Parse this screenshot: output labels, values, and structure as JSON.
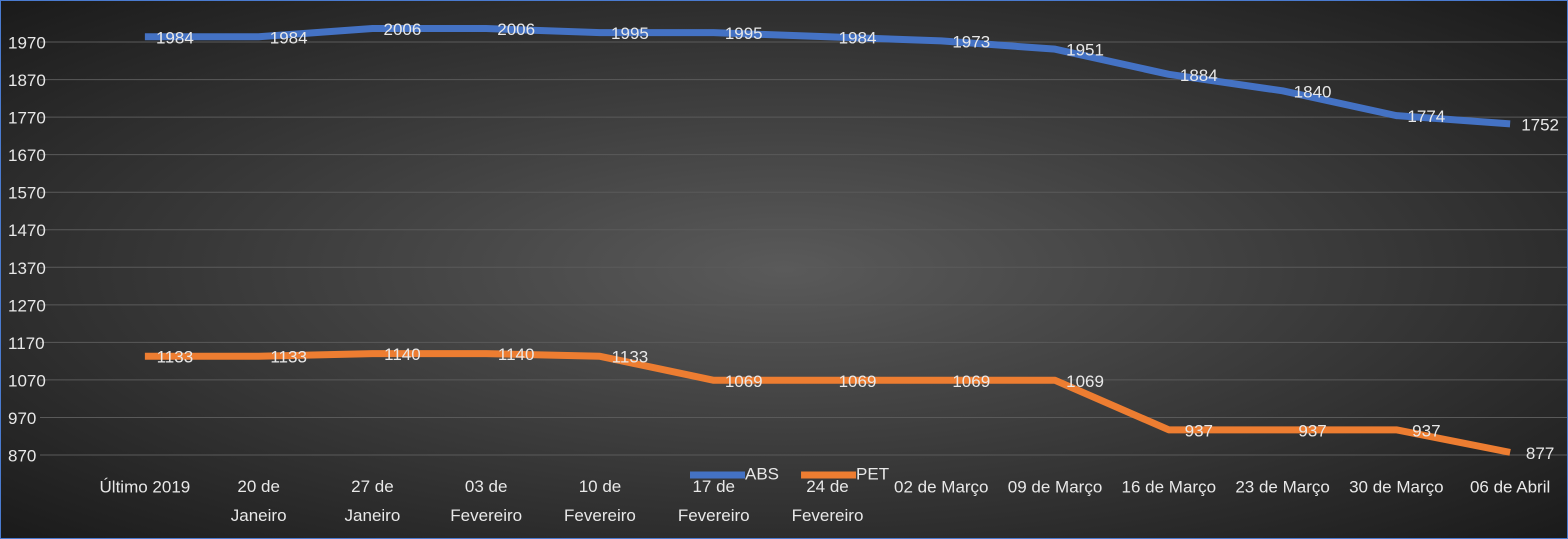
{
  "chart_data": {
    "type": "line",
    "categories": [
      "Último 2019",
      "20 de Janeiro",
      "27 de Janeiro",
      "03 de Fevereiro",
      "10 de Fevereiro",
      "17 de Fevereiro",
      "24 de Fevereiro",
      "02 de Março",
      "09 de Março",
      "16 de Março",
      "23 de Março",
      "30 de Março",
      "06 de Abril"
    ],
    "series": [
      {
        "name": "ABS",
        "color": "#4472c4",
        "values": [
          1984,
          1984,
          2006,
          2006,
          1995,
          1995,
          1984,
          1973,
          1951,
          1884,
          1840,
          1774,
          1752
        ]
      },
      {
        "name": "PET",
        "color": "#ed7d31",
        "values": [
          1133,
          1133,
          1140,
          1140,
          1133,
          1069,
          1069,
          1069,
          1069,
          937,
          937,
          937,
          877
        ]
      }
    ],
    "ylim": [
      870,
      2070
    ],
    "yticks": [
      870,
      970,
      1070,
      1170,
      1270,
      1370,
      1470,
      1570,
      1670,
      1770,
      1870,
      1970
    ],
    "grid": true,
    "legend": "bottom"
  }
}
